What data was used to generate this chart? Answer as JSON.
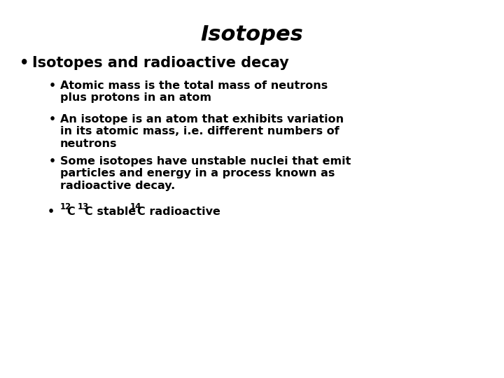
{
  "title": "Isotopes",
  "background_color": "#ffffff",
  "text_color": "#000000",
  "title_fontsize": 22,
  "title_style": "italic",
  "title_weight": "bold",
  "bullet1": "Isotopes and radioactive decay",
  "bullet1_fontsize": 15,
  "bullet1_weight": "bold",
  "subbullets": [
    "Atomic mass is the total mass of neutrons\nplus protons in an atom",
    "An isotope is an atom that exhibits variation\nin its atomic mass, i.e. different numbers of\nneutrons",
    "Some isotopes have unstable nuclei that emit\nparticles and energy in a process known as\nradioactive decay."
  ],
  "subbullet_fontsize": 11.5,
  "subbullet_weight": "bold",
  "last_bullet_fontsize": 11.5,
  "last_bullet_weight": "bold",
  "super_fontsize": 8.5
}
